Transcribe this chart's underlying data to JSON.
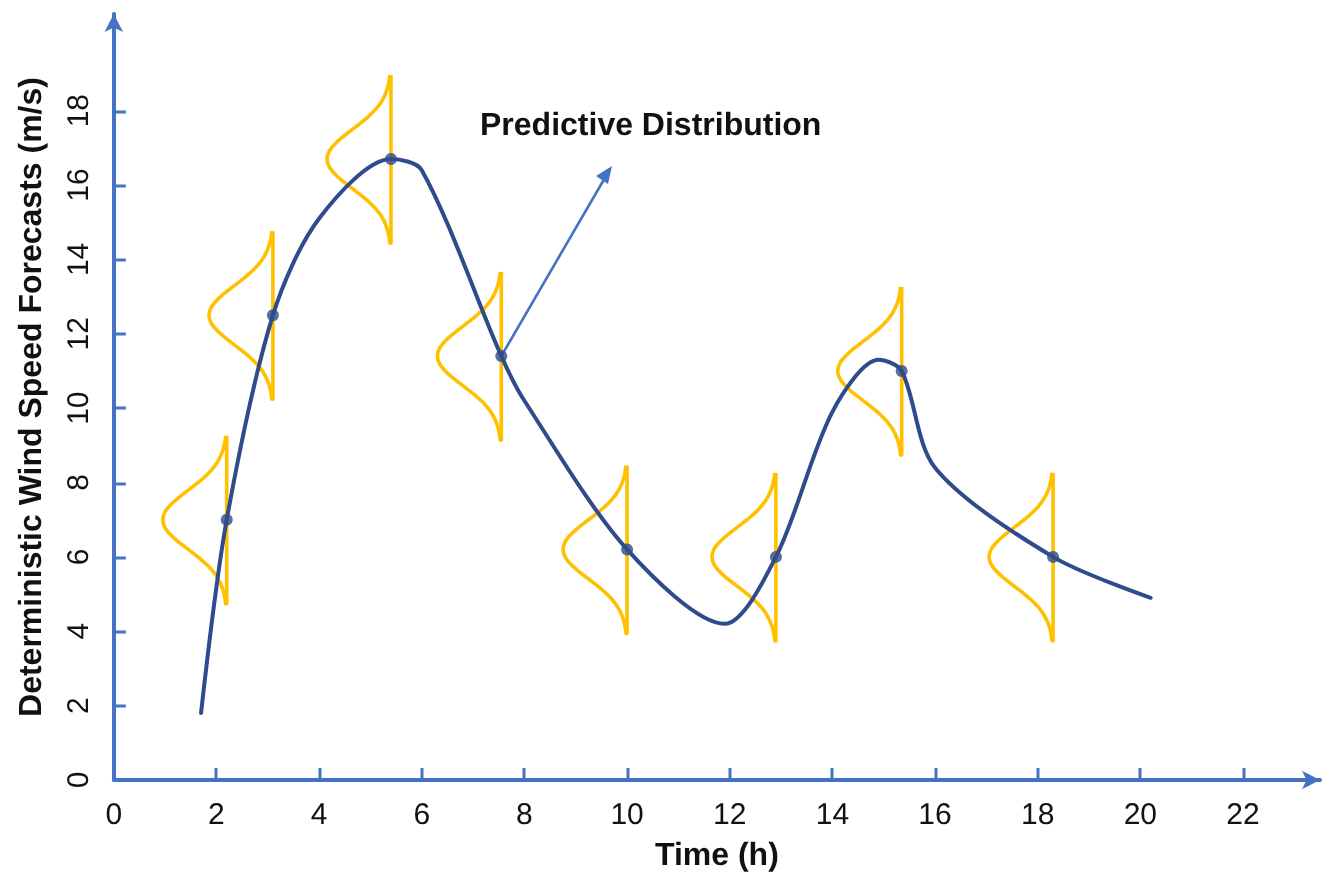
{
  "chart_data": {
    "type": "line",
    "xlabel": "Time (h)",
    "ylabel": "Deterministic Wind Speed Forecasts (m/s)",
    "annotations": [
      {
        "text": "Predictive Distribution",
        "x": 7.55,
        "y": 11.4
      }
    ],
    "xlim": [
      0,
      23.5
    ],
    "xticks": [
      0,
      2,
      4,
      6,
      8,
      10,
      12,
      14,
      16,
      18,
      20,
      22
    ],
    "ylim": [
      0,
      20.6
    ],
    "yticks": [
      0,
      2,
      4,
      6,
      8,
      10,
      12,
      14,
      16,
      18
    ],
    "grid": false,
    "series": [
      {
        "color": "#2f4b8c",
        "marker": "none",
        "x": [
          1.7,
          2.2,
          3.1,
          4.0,
          5.4,
          6.0,
          7.55,
          8.0,
          10.0,
          11.9,
          12.9,
          14.0,
          14.9,
          15.35,
          16.0,
          18.3,
          20.2
        ],
        "values": [
          1.8,
          7.0,
          12.5,
          15.1,
          16.7,
          16.4,
          11.4,
          10.2,
          6.2,
          4.2,
          6.0,
          9.9,
          11.3,
          11.0,
          8.4,
          6.0,
          4.9
        ]
      },
      {
        "type": "scatter",
        "color": "#2f4b8c",
        "marker": "circle",
        "x": [
          2.2,
          3.1,
          5.4,
          7.55,
          10.0,
          12.9,
          15.35,
          18.3
        ],
        "values": [
          7.0,
          12.5,
          16.7,
          11.4,
          6.2,
          6.0,
          11.0,
          6.0
        ]
      }
    ]
  }
}
